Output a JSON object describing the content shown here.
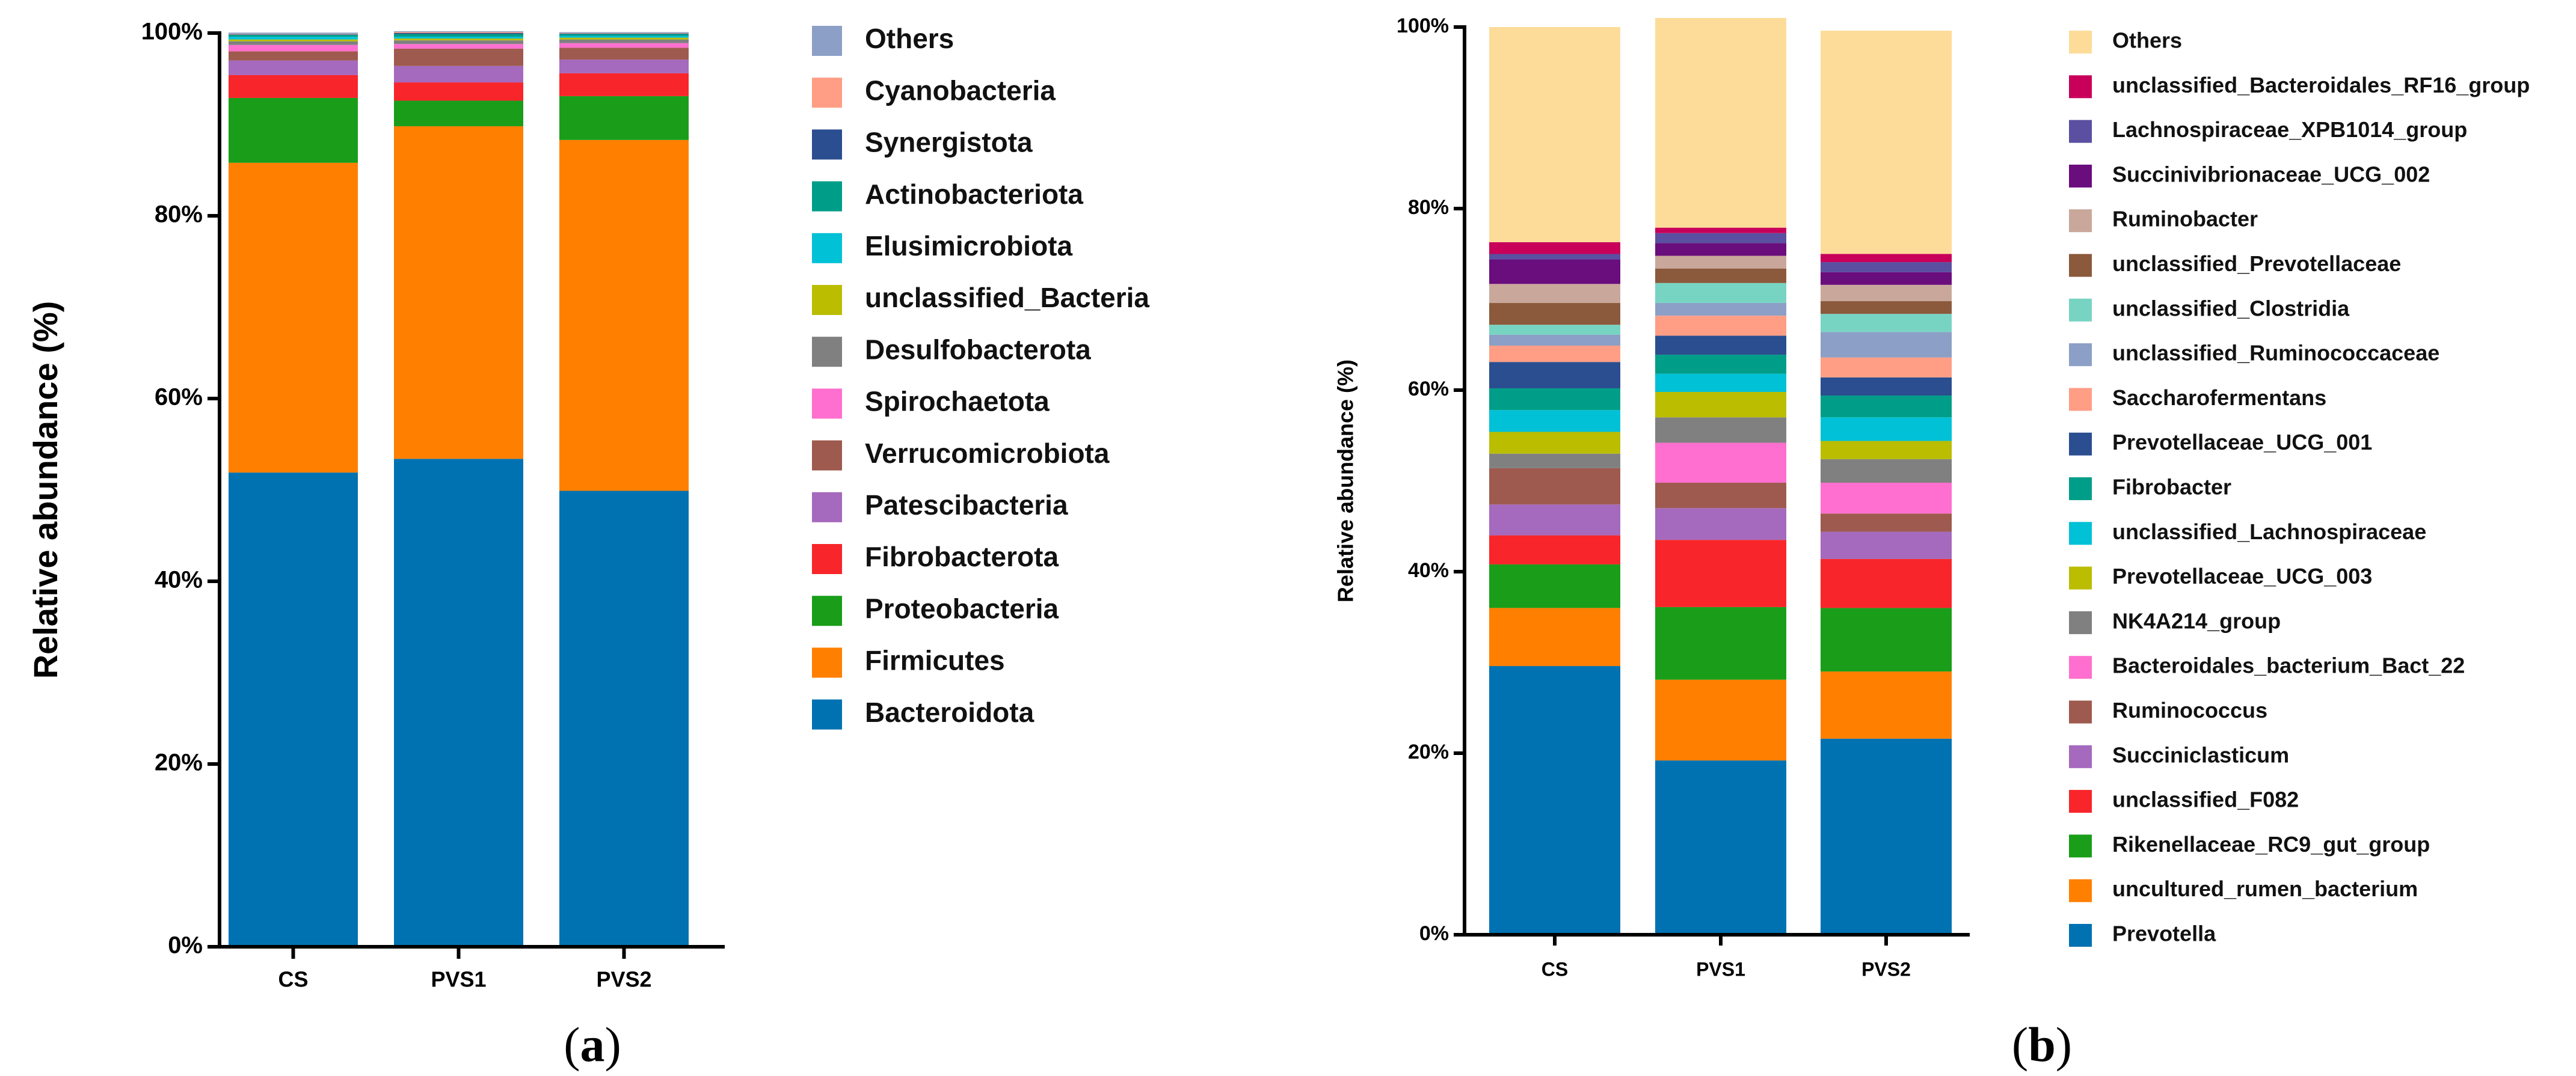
{
  "chart_data": [
    {
      "type": "stacked-bar",
      "panel_label": {
        "open": "(",
        "letter": "a",
        "close": ")"
      },
      "ylabel": "Relative abundance (%)",
      "ylim": [
        0,
        100
      ],
      "yticks": [
        "0%",
        "20%",
        "40%",
        "60%",
        "80%",
        "100%"
      ],
      "categories": [
        "CS",
        "PVS1",
        "PVS2"
      ],
      "legend_order": "reverse",
      "series": [
        {
          "name": "Bacteroidota",
          "color": "#0072B2",
          "values": [
            51.9,
            53.4,
            49.9
          ]
        },
        {
          "name": "Firmicutes",
          "color": "#FF7F00",
          "values": [
            33.9,
            36.4,
            38.4
          ]
        },
        {
          "name": "Proteobacteria",
          "color": "#1A9E1A",
          "values": [
            7.1,
            2.8,
            4.8
          ]
        },
        {
          "name": "Fibrobacterota",
          "color": "#F8252A",
          "values": [
            2.5,
            2.0,
            2.5
          ]
        },
        {
          "name": "Patescibacteria",
          "color": "#A569BD",
          "values": [
            1.6,
            1.8,
            1.5
          ]
        },
        {
          "name": "Verrucomicrobiota",
          "color": "#9E5A4E",
          "values": [
            1.0,
            1.9,
            1.3
          ]
        },
        {
          "name": "Spirochaetota",
          "color": "#FF6FCF",
          "values": [
            0.7,
            0.5,
            0.5
          ]
        },
        {
          "name": "Desulfobacterota",
          "color": "#808080",
          "values": [
            0.4,
            0.4,
            0.4
          ]
        },
        {
          "name": "unclassified_Bacteria",
          "color": "#BABD00",
          "values": [
            0.2,
            0.2,
            0.2
          ]
        },
        {
          "name": "Elusimicrobiota",
          "color": "#00C1D6",
          "values": [
            0.3,
            0.2,
            0.2
          ]
        },
        {
          "name": "Actinobacteriota",
          "color": "#009E88",
          "values": [
            0.2,
            0.3,
            0.2
          ]
        },
        {
          "name": "Synergistota",
          "color": "#2A4E8F",
          "values": [
            0.05,
            0.1,
            0.05
          ]
        },
        {
          "name": "Cyanobacteria",
          "color": "#FF9E85",
          "values": [
            0.05,
            0.1,
            0.05
          ]
        },
        {
          "name": "Others",
          "color": "#8C9FC6",
          "values": [
            0.15,
            0.1,
            0.1
          ]
        }
      ]
    },
    {
      "type": "stacked-bar",
      "panel_label": {
        "open": "(",
        "letter": "b",
        "close": ")"
      },
      "ylabel": "Relative abundance (%)",
      "ylim": [
        0,
        100
      ],
      "yticks": [
        "0%",
        "20%",
        "40%",
        "60%",
        "80%",
        "100%"
      ],
      "categories": [
        "CS",
        "PVS1",
        "PVS2"
      ],
      "legend_order": "reverse",
      "series": [
        {
          "name": "Prevotella",
          "color": "#0072B2",
          "values": [
            29.6,
            19.2,
            21.6
          ]
        },
        {
          "name": "uncultured_rumen_bacterium",
          "color": "#FF7F00",
          "values": [
            6.4,
            8.9,
            7.4
          ]
        },
        {
          "name": "Rikenellaceae_RC9_gut_group",
          "color": "#1A9E1A",
          "values": [
            4.8,
            8.0,
            7.0
          ]
        },
        {
          "name": "unclassified_F082",
          "color": "#F8252A",
          "values": [
            3.2,
            7.4,
            5.4
          ]
        },
        {
          "name": "Succiniclasticum",
          "color": "#A569BD",
          "values": [
            3.4,
            3.5,
            3.0
          ]
        },
        {
          "name": "Ruminococcus",
          "color": "#9E5A4E",
          "values": [
            4.0,
            2.8,
            2.0
          ]
        },
        {
          "name": "Bacteroidales_bacterium_Bact_22",
          "color": "#FF6FCF",
          "values": [
            0.0,
            4.4,
            3.4
          ]
        },
        {
          "name": "NK4A214_group",
          "color": "#808080",
          "values": [
            1.6,
            2.8,
            2.6
          ]
        },
        {
          "name": "Prevotellaceae_UCG_003",
          "color": "#BABD00",
          "values": [
            2.4,
            2.8,
            2.0
          ]
        },
        {
          "name": "unclassified_Lachnospiraceae",
          "color": "#00C1D6",
          "values": [
            2.4,
            2.0,
            2.6
          ]
        },
        {
          "name": "Fibrobacter",
          "color": "#009E88",
          "values": [
            2.4,
            2.1,
            2.4
          ]
        },
        {
          "name": "Prevotellaceae_UCG_001",
          "color": "#2A4E8F",
          "values": [
            2.9,
            2.1,
            2.0
          ]
        },
        {
          "name": "Saccharofermentans",
          "color": "#FF9E85",
          "values": [
            1.8,
            2.2,
            2.2
          ]
        },
        {
          "name": "unclassified_Ruminococcaceae",
          "color": "#8C9FC6",
          "values": [
            1.2,
            1.4,
            2.8
          ]
        },
        {
          "name": "unclassified_Clostridia",
          "color": "#78D4C2",
          "values": [
            1.1,
            2.2,
            2.0
          ]
        },
        {
          "name": "unclassified_Prevotellaceae",
          "color": "#8B5A3C",
          "values": [
            2.4,
            1.6,
            1.4
          ]
        },
        {
          "name": "Ruminobacter",
          "color": "#C9A89B",
          "values": [
            2.1,
            1.4,
            1.8
          ]
        },
        {
          "name": "Succinivibrionaceae_UCG_002",
          "color": "#6A0D7D",
          "values": [
            2.7,
            1.4,
            1.4
          ]
        },
        {
          "name": "Lachnospiraceae_XPB1014_group",
          "color": "#5A4FA0",
          "values": [
            0.6,
            1.1,
            1.1
          ]
        },
        {
          "name": "unclassified_Bacteroidales_RF16_group",
          "color": "#C8005A",
          "values": [
            1.3,
            0.6,
            0.9
          ]
        },
        {
          "name": "Others",
          "color": "#FDDC9A",
          "values": [
            23.7,
            23.1,
            24.6
          ]
        }
      ]
    }
  ]
}
